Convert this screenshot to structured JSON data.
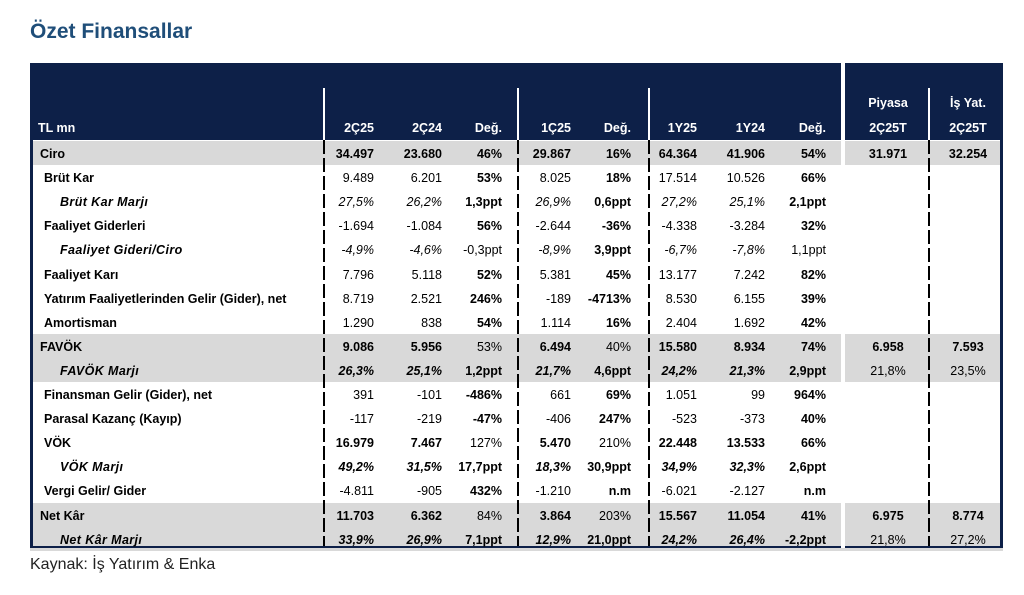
{
  "title": "Özet Finansallar",
  "source": "Kaynak: İş Yatırım & Enka",
  "header": {
    "label": "TL mn",
    "cols": [
      "2Ç25",
      "2Ç24",
      "Değ.",
      "1Ç25",
      "Değ.",
      "1Y25",
      "1Y24",
      "Değ."
    ],
    "side_top": [
      "Piyasa",
      "İş Yat."
    ],
    "side": [
      "2Ç25T",
      "2Ç25T"
    ]
  },
  "rows": [
    {
      "label": "Ciro",
      "v": [
        "34.497",
        "23.680",
        "46%",
        "29.867",
        "16%",
        "64.364",
        "41.906",
        "54%"
      ],
      "s": [
        "31.971",
        "32.254"
      ]
    },
    {
      "label": "Brüt Kar",
      "v": [
        "9.489",
        "6.201",
        "53%",
        "8.025",
        "18%",
        "17.514",
        "10.526",
        "66%"
      ],
      "s": [
        "",
        ""
      ]
    },
    {
      "label": "Brüt Kar Marjı",
      "v": [
        "27,5%",
        "26,2%",
        "1,3ppt",
        "26,9%",
        "0,6ppt",
        "27,2%",
        "25,1%",
        "2,1ppt"
      ],
      "s": [
        "",
        ""
      ]
    },
    {
      "label": "Faaliyet Giderleri",
      "v": [
        "-1.694",
        "-1.084",
        "56%",
        "-2.644",
        "-36%",
        "-4.338",
        "-3.284",
        "32%"
      ],
      "s": [
        "",
        ""
      ]
    },
    {
      "label": "Faaliyet Gideri/Ciro",
      "v": [
        "-4,9%",
        "-4,6%",
        "-0,3ppt",
        "-8,9%",
        "3,9ppt",
        "-6,7%",
        "-7,8%",
        "1,1ppt"
      ],
      "s": [
        "",
        ""
      ]
    },
    {
      "label": "Faaliyet Karı",
      "v": [
        "7.796",
        "5.118",
        "52%",
        "5.381",
        "45%",
        "13.177",
        "7.242",
        "82%"
      ],
      "s": [
        "",
        ""
      ]
    },
    {
      "label": "Yatırım Faaliyetlerinden Gelir (Gider), net",
      "v": [
        "8.719",
        "2.521",
        "246%",
        "-189",
        "-4713%",
        "8.530",
        "6.155",
        "39%"
      ],
      "s": [
        "",
        ""
      ]
    },
    {
      "label": "Amortisman",
      "v": [
        "1.290",
        "838",
        "54%",
        "1.114",
        "16%",
        "2.404",
        "1.692",
        "42%"
      ],
      "s": [
        "",
        ""
      ]
    },
    {
      "label": "FAVÖK",
      "v": [
        "9.086",
        "5.956",
        "53%",
        "6.494",
        "40%",
        "15.580",
        "8.934",
        "74%"
      ],
      "s": [
        "6.958",
        "7.593"
      ]
    },
    {
      "label": "FAVÖK Marjı",
      "v": [
        "26,3%",
        "25,1%",
        "1,2ppt",
        "21,7%",
        "4,6ppt",
        "24,2%",
        "21,3%",
        "2,9ppt"
      ],
      "s": [
        "21,8%",
        "23,5%"
      ]
    },
    {
      "label": "Finansman Gelir (Gider), net",
      "v": [
        "391",
        "-101",
        "-486%",
        "661",
        "69%",
        "1.051",
        "99",
        "964%"
      ],
      "s": [
        "",
        ""
      ]
    },
    {
      "label": "Parasal Kazanç (Kayıp)",
      "v": [
        "-117",
        "-219",
        "-47%",
        "-406",
        "247%",
        "-523",
        "-373",
        "40%"
      ],
      "s": [
        "",
        ""
      ]
    },
    {
      "label": "VÖK",
      "v": [
        "16.979",
        "7.467",
        "127%",
        "5.470",
        "210%",
        "22.448",
        "13.533",
        "66%"
      ],
      "s": [
        "",
        ""
      ]
    },
    {
      "label": "VÖK Marjı",
      "v": [
        "49,2%",
        "31,5%",
        "17,7ppt",
        "18,3%",
        "30,9ppt",
        "34,9%",
        "32,3%",
        "2,6ppt"
      ],
      "s": [
        "",
        ""
      ]
    },
    {
      "label": "Vergi Gelir/ Gider",
      "v": [
        "-4.811",
        "-905",
        "432%",
        "-1.210",
        "n.m",
        "-6.021",
        "-2.127",
        "n.m"
      ],
      "s": [
        "",
        ""
      ]
    },
    {
      "label": "Net Kâr",
      "v": [
        "11.703",
        "6.362",
        "84%",
        "3.864",
        "203%",
        "15.567",
        "11.054",
        "41%"
      ],
      "s": [
        "6.975",
        "8.774"
      ]
    },
    {
      "label": "Net Kâr Marjı",
      "v": [
        "33,9%",
        "26,9%",
        "7,1ppt",
        "12,9%",
        "21,0ppt",
        "24,2%",
        "26,4%",
        "-2,2ppt"
      ],
      "s": [
        "21,8%",
        "27,2%"
      ]
    }
  ]
}
